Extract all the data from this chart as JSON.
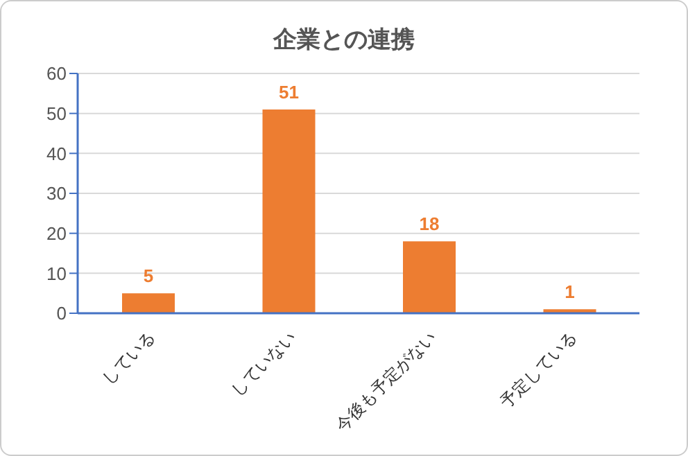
{
  "chart_data": {
    "type": "bar",
    "title": "企業との連携",
    "categories": [
      "している",
      "していない",
      "今後も予定がない",
      "予定している"
    ],
    "values": [
      5,
      51,
      18,
      1
    ],
    "color": "#ed7d31",
    "ylim": [
      0,
      60
    ],
    "yticks": [
      0,
      10,
      20,
      30,
      40,
      50,
      60
    ],
    "grid": "y",
    "data_labels": true
  }
}
